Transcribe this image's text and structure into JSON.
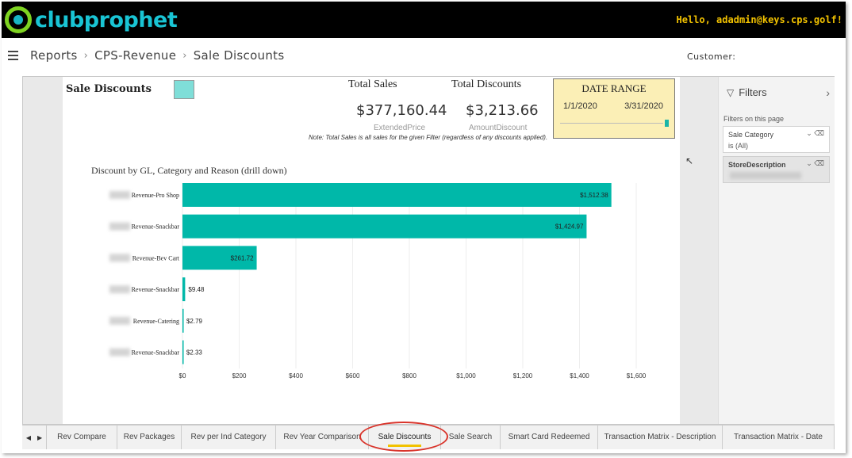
{
  "app": {
    "logo_text": "clubprophet",
    "greeting": "Hello, adadmin@keys.cps.golf!"
  },
  "breadcrumb": [
    "Reports",
    "CPS-Revenue",
    "Sale Discounts"
  ],
  "breadcrumb_separator": "›",
  "customer_label": "Customer:",
  "report": {
    "title": "Sale Discounts",
    "swatch_color": "#7fded8",
    "kpis": [
      {
        "title": "Total Sales",
        "value": "$377,160.44",
        "field": "ExtendedPrice"
      },
      {
        "title": "Total Discounts",
        "value": "$3,213.66",
        "field": "AmountDiscount"
      }
    ],
    "note": "Note: Total Sales is all sales for the given Filter (regardless of any discounts applied).",
    "date_range": {
      "title": "DATE RANGE",
      "start": "1/1/2020",
      "end": "3/31/2020"
    }
  },
  "chart_data": {
    "type": "bar",
    "orientation": "horizontal",
    "title": "Discount by GL, Category and Reason (drill down)",
    "categories": [
      "Revenue-Pro Shop",
      "Revenue-Snackbar",
      "Revenue-Bev Cart",
      "Revenue-Snackbar",
      "Revenue-Catering",
      "Revenue-Snackbar"
    ],
    "values": [
      1512.38,
      1424.97,
      261.72,
      9.48,
      2.79,
      2.33
    ],
    "value_labels": [
      "$1,512.38",
      "$1,424.97",
      "$261.72",
      "$9.48",
      "$2.79",
      "$2.33"
    ],
    "xlim": [
      0,
      1600
    ],
    "xticks": [
      "$0",
      "$200",
      "$400",
      "$600",
      "$800",
      "$1,000",
      "$1,200",
      "$1,400",
      "$1,600"
    ],
    "bar_color": "#00b8a9",
    "grid": true
  },
  "filters": {
    "header": "Filters",
    "section_label": "Filters on this page",
    "items": [
      {
        "name": "Sale Category",
        "value": "is (All)"
      },
      {
        "name": "StoreDescription",
        "value": ""
      }
    ]
  },
  "tabs": [
    {
      "label": "Rev Compare"
    },
    {
      "label": "Rev Packages"
    },
    {
      "label": "Rev per Ind Category"
    },
    {
      "label": "Rev Year Comparison"
    },
    {
      "label": "Sale Discounts"
    },
    {
      "label": "Sale Search"
    },
    {
      "label": "Smart Card Redeemed"
    },
    {
      "label": "Transaction Matrix - Description"
    },
    {
      "label": "Transaction Matrix - Date"
    }
  ],
  "active_tab": "Sale Discounts",
  "icons": {
    "menu": "hamburger-icon",
    "filter": "funnel-icon",
    "collapse": "chevron-right-icon",
    "tab_prev": "triangle-left-icon",
    "tab_next": "triangle-right-icon"
  }
}
